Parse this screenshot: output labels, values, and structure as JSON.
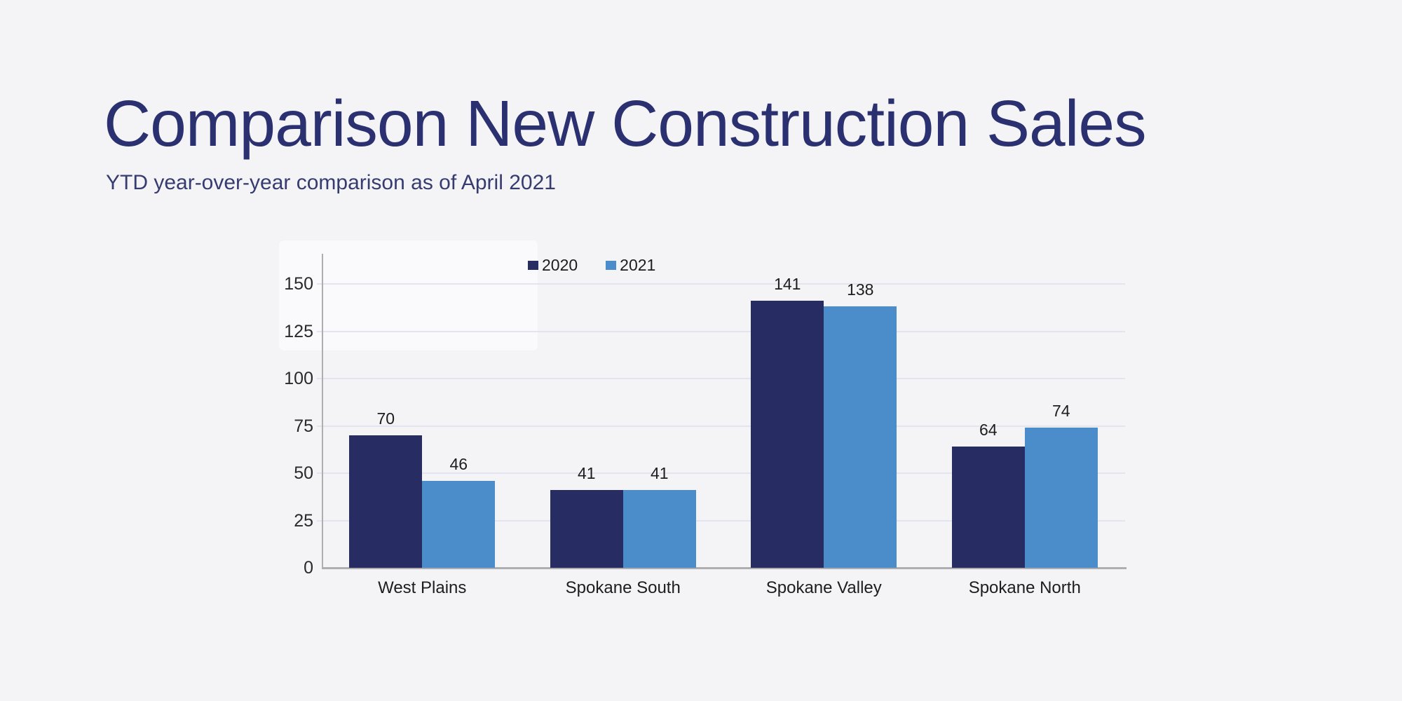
{
  "slide": {
    "background": "#f4f4f6",
    "panel_color": "#fafafc"
  },
  "chart_data": {
    "type": "bar",
    "title": "Comparison New Construction Sales",
    "subtitle": "YTD year-over-year comparison as of April 2021",
    "categories": [
      "West Plains",
      "Spokane South",
      "Spokane Valley",
      "Spokane North"
    ],
    "series": [
      {
        "name": "2020",
        "color": "#272d63",
        "values": [
          70,
          41,
          141,
          64
        ]
      },
      {
        "name": "2021",
        "color": "#4b8cca",
        "values": [
          46,
          41,
          138,
          74
        ]
      }
    ],
    "yticks": [
      0,
      25,
      50,
      75,
      100,
      125,
      150
    ],
    "ylim": [
      0,
      165
    ],
    "grid": true,
    "value_labels": true,
    "legend_position": "top-center",
    "colors": {
      "title": "#2b3170",
      "subtitle": "#363c6f",
      "text": "#1d1d1d",
      "grid": "#e4e4f0",
      "axis": "#aeaeb1"
    }
  }
}
